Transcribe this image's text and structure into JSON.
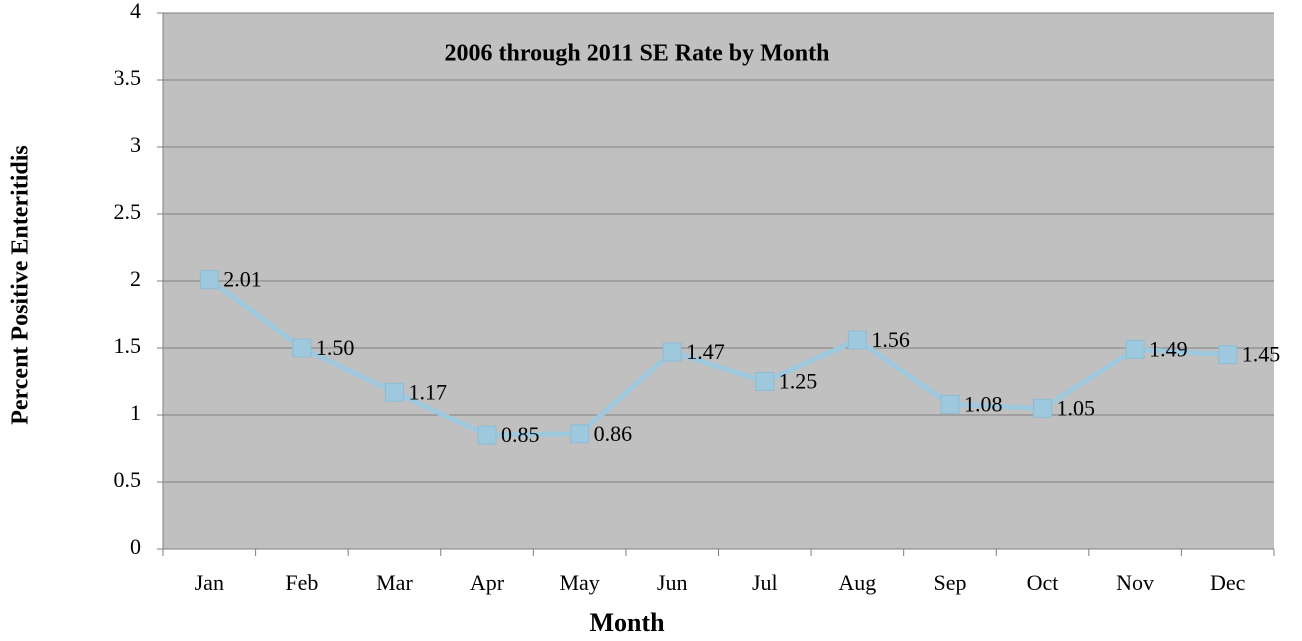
{
  "chart_data": {
    "type": "line",
    "title": "2006 through 2011 SE Rate by Month",
    "x_label": "Month",
    "y_label": "Percent Positive Enteritidis",
    "categories": [
      "Jan",
      "Feb",
      "Mar",
      "Apr",
      "May",
      "Jun",
      "Jul",
      "Aug",
      "Sep",
      "Oct",
      "Nov",
      "Dec"
    ],
    "values": [
      2.01,
      1.5,
      1.17,
      0.85,
      0.86,
      1.47,
      1.25,
      1.56,
      1.08,
      1.05,
      1.49,
      1.45
    ],
    "value_labels": [
      "2.01",
      "1.50",
      "1.17",
      "0.85",
      "0.86",
      "1.47",
      "1.25",
      "1.56",
      "1.08",
      "1.05",
      "1.49",
      "1.45"
    ],
    "color": "#9dc8de",
    "background": "#c0c0c0",
    "ylim": [
      0,
      4
    ],
    "yticks": [
      0,
      0.5,
      1,
      1.5,
      2,
      2.5,
      3,
      3.5,
      4
    ],
    "grid": true
  }
}
